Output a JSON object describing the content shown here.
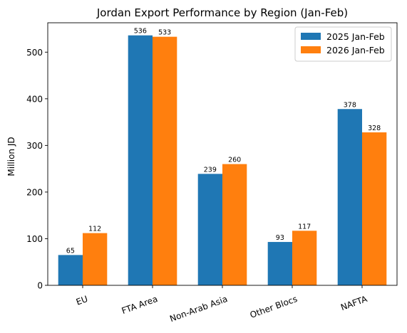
{
  "chart_data": {
    "type": "bar",
    "title": "Jordan Export Performance by Region (Jan-Feb)",
    "xlabel": "",
    "ylabel": "Million JD",
    "categories": [
      "EU",
      "FTA Area",
      "Non-Arab Asia",
      "Other Blocs",
      "NAFTA"
    ],
    "series": [
      {
        "name": "2025 Jan-Feb",
        "color": "#1f77b4",
        "values": [
          65,
          536,
          239,
          93,
          378
        ]
      },
      {
        "name": "2026 Jan-Feb",
        "color": "#ff7f0e",
        "values": [
          112,
          533,
          260,
          117,
          328
        ]
      }
    ],
    "ylim": [
      0,
      563
    ],
    "yticks": [
      0,
      100,
      200,
      300,
      400,
      500
    ],
    "grid": false,
    "legend_position": "top-right",
    "xtick_rotation": -20
  }
}
